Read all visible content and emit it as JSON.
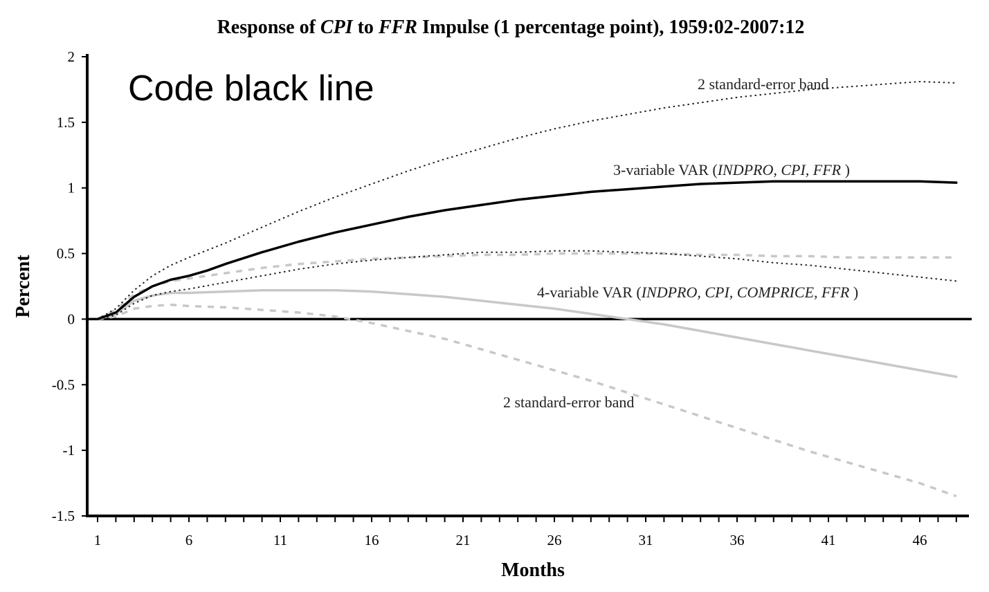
{
  "chart_data": {
    "type": "line",
    "title": {
      "parts": [
        {
          "text": "Response of ",
          "italic": false
        },
        {
          "text": "CPI",
          "italic": true
        },
        {
          "text": "  to ",
          "italic": false
        },
        {
          "text": "FFR",
          "italic": true
        },
        {
          "text": "  Impulse (1 percentage point), 1959:02-2007:12",
          "italic": false
        }
      ]
    },
    "overlay_text": "Code black line",
    "xlabel": "Months",
    "ylabel": "Percent",
    "xlim": [
      0,
      48.5
    ],
    "ylim": [
      -1.5,
      2
    ],
    "x_ticks": [
      1,
      6,
      11,
      16,
      21,
      26,
      31,
      36,
      41,
      46
    ],
    "y_ticks": [
      {
        "value": 2,
        "label": "2"
      },
      {
        "value": 1.5,
        "label": "1.5"
      },
      {
        "value": 1,
        "label": "1"
      },
      {
        "value": 0.5,
        "label": "0.5"
      },
      {
        "value": 0,
        "label": "0"
      },
      {
        "value": -0.5,
        "label": "-0.5"
      },
      {
        "value": -1,
        "label": "-1"
      },
      {
        "value": -1.5,
        "label": "-1.5"
      }
    ],
    "grid": false,
    "colors": {
      "black": "#000000",
      "grey": "#c8c8c8",
      "dotted": "#222222"
    },
    "series": [
      {
        "role": "3var-upper-band",
        "color": "#222222",
        "style": "dotted",
        "points": [
          [
            1,
            0
          ],
          [
            2,
            0.08
          ],
          [
            3,
            0.22
          ],
          [
            4,
            0.33
          ],
          [
            5,
            0.41
          ],
          [
            6,
            0.47
          ],
          [
            8,
            0.58
          ],
          [
            10,
            0.7
          ],
          [
            12,
            0.82
          ],
          [
            14,
            0.93
          ],
          [
            16,
            1.03
          ],
          [
            18,
            1.13
          ],
          [
            20,
            1.22
          ],
          [
            22,
            1.3
          ],
          [
            24,
            1.38
          ],
          [
            26,
            1.45
          ],
          [
            28,
            1.51
          ],
          [
            30,
            1.56
          ],
          [
            32,
            1.61
          ],
          [
            34,
            1.65
          ],
          [
            36,
            1.69
          ],
          [
            38,
            1.72
          ],
          [
            40,
            1.75
          ],
          [
            42,
            1.77
          ],
          [
            44,
            1.79
          ],
          [
            46,
            1.81
          ],
          [
            48,
            1.8
          ]
        ]
      },
      {
        "role": "3var-lower-band",
        "color": "#222222",
        "style": "dotted",
        "points": [
          [
            1,
            0
          ],
          [
            2,
            0.03
          ],
          [
            3,
            0.12
          ],
          [
            4,
            0.18
          ],
          [
            5,
            0.21
          ],
          [
            6,
            0.23
          ],
          [
            8,
            0.28
          ],
          [
            10,
            0.33
          ],
          [
            12,
            0.38
          ],
          [
            14,
            0.42
          ],
          [
            16,
            0.45
          ],
          [
            18,
            0.47
          ],
          [
            20,
            0.49
          ],
          [
            22,
            0.51
          ],
          [
            24,
            0.51
          ],
          [
            26,
            0.52
          ],
          [
            28,
            0.52
          ],
          [
            30,
            0.51
          ],
          [
            32,
            0.5
          ],
          [
            34,
            0.48
          ],
          [
            36,
            0.46
          ],
          [
            38,
            0.43
          ],
          [
            40,
            0.41
          ],
          [
            42,
            0.38
          ],
          [
            44,
            0.35
          ],
          [
            46,
            0.32
          ],
          [
            48,
            0.29
          ]
        ]
      },
      {
        "role": "3var-impulse-response",
        "name": "3-variable VAR",
        "color": "#000000",
        "style": "solid",
        "points": [
          [
            1,
            0
          ],
          [
            2,
            0.05
          ],
          [
            3,
            0.17
          ],
          [
            4,
            0.25
          ],
          [
            5,
            0.3
          ],
          [
            6,
            0.33
          ],
          [
            7,
            0.37
          ],
          [
            8,
            0.42
          ],
          [
            10,
            0.51
          ],
          [
            12,
            0.59
          ],
          [
            14,
            0.66
          ],
          [
            16,
            0.72
          ],
          [
            18,
            0.78
          ],
          [
            20,
            0.83
          ],
          [
            22,
            0.87
          ],
          [
            24,
            0.91
          ],
          [
            26,
            0.94
          ],
          [
            28,
            0.97
          ],
          [
            30,
            0.99
          ],
          [
            32,
            1.01
          ],
          [
            34,
            1.03
          ],
          [
            36,
            1.04
          ],
          [
            38,
            1.05
          ],
          [
            40,
            1.05
          ],
          [
            42,
            1.05
          ],
          [
            44,
            1.05
          ],
          [
            46,
            1.05
          ],
          [
            48,
            1.04
          ]
        ]
      },
      {
        "role": "4var-upper-band",
        "color": "#c8c8c8",
        "style": "dashed",
        "points": [
          [
            1,
            0
          ],
          [
            2,
            0.07
          ],
          [
            3,
            0.19
          ],
          [
            4,
            0.25
          ],
          [
            5,
            0.29
          ],
          [
            6,
            0.31
          ],
          [
            8,
            0.35
          ],
          [
            10,
            0.39
          ],
          [
            12,
            0.42
          ],
          [
            14,
            0.44
          ],
          [
            16,
            0.46
          ],
          [
            18,
            0.47
          ],
          [
            20,
            0.48
          ],
          [
            22,
            0.49
          ],
          [
            24,
            0.49
          ],
          [
            26,
            0.5
          ],
          [
            28,
            0.5
          ],
          [
            30,
            0.5
          ],
          [
            32,
            0.5
          ],
          [
            34,
            0.49
          ],
          [
            36,
            0.49
          ],
          [
            38,
            0.48
          ],
          [
            40,
            0.48
          ],
          [
            42,
            0.47
          ],
          [
            44,
            0.47
          ],
          [
            46,
            0.47
          ],
          [
            48,
            0.47
          ]
        ]
      },
      {
        "role": "4var-impulse-response",
        "name": "4-variable VAR",
        "color": "#c8c8c8",
        "style": "solid",
        "points": [
          [
            1,
            0
          ],
          [
            2,
            0.04
          ],
          [
            3,
            0.14
          ],
          [
            4,
            0.18
          ],
          [
            5,
            0.2
          ],
          [
            6,
            0.2
          ],
          [
            8,
            0.21
          ],
          [
            10,
            0.22
          ],
          [
            12,
            0.22
          ],
          [
            14,
            0.22
          ],
          [
            16,
            0.21
          ],
          [
            18,
            0.19
          ],
          [
            20,
            0.17
          ],
          [
            22,
            0.14
          ],
          [
            24,
            0.11
          ],
          [
            26,
            0.08
          ],
          [
            28,
            0.04
          ],
          [
            30,
            0.0
          ],
          [
            32,
            -0.04
          ],
          [
            34,
            -0.09
          ],
          [
            36,
            -0.14
          ],
          [
            38,
            -0.19
          ],
          [
            40,
            -0.24
          ],
          [
            42,
            -0.29
          ],
          [
            44,
            -0.34
          ],
          [
            46,
            -0.39
          ],
          [
            48,
            -0.44
          ]
        ]
      },
      {
        "role": "4var-lower-band",
        "color": "#c8c8c8",
        "style": "dashed",
        "points": [
          [
            1,
            0
          ],
          [
            2,
            0.02
          ],
          [
            3,
            0.08
          ],
          [
            4,
            0.1
          ],
          [
            5,
            0.11
          ],
          [
            6,
            0.1
          ],
          [
            8,
            0.09
          ],
          [
            10,
            0.07
          ],
          [
            12,
            0.05
          ],
          [
            14,
            0.02
          ],
          [
            16,
            -0.03
          ],
          [
            18,
            -0.09
          ],
          [
            20,
            -0.15
          ],
          [
            22,
            -0.23
          ],
          [
            24,
            -0.31
          ],
          [
            26,
            -0.39
          ],
          [
            28,
            -0.47
          ],
          [
            30,
            -0.56
          ],
          [
            32,
            -0.65
          ],
          [
            34,
            -0.74
          ],
          [
            36,
            -0.83
          ],
          [
            38,
            -0.92
          ],
          [
            40,
            -1.01
          ],
          [
            42,
            -1.09
          ],
          [
            44,
            -1.17
          ],
          [
            46,
            -1.25
          ],
          [
            48,
            -1.35
          ]
        ]
      }
    ],
    "annotations": {
      "band_top": {
        "parts": [
          {
            "text": "2 standard-error band",
            "italic": false
          }
        ]
      },
      "var3": {
        "parts": [
          {
            "text": "3-variable VAR (",
            "italic": false
          },
          {
            "text": "INDPRO, CPI, FFR",
            "italic": true
          },
          {
            "text": " )",
            "italic": false
          }
        ]
      },
      "var4": {
        "parts": [
          {
            "text": "4-variable VAR (",
            "italic": false
          },
          {
            "text": "INDPRO, CPI, COMPRICE, FFR",
            "italic": true
          },
          {
            "text": " )",
            "italic": false
          }
        ]
      },
      "band_bottom": {
        "parts": [
          {
            "text": "2 standard-error band",
            "italic": false
          }
        ]
      }
    }
  }
}
